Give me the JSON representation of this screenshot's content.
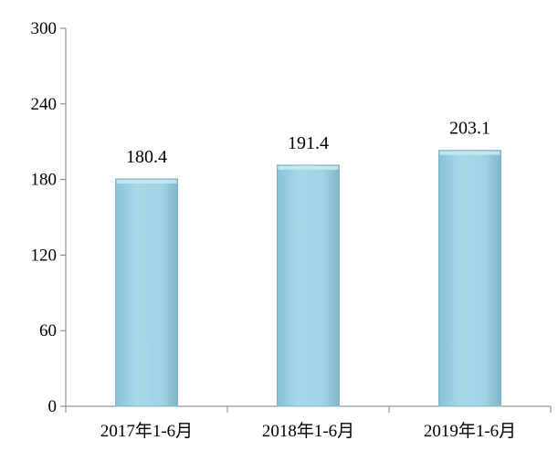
{
  "chart_data": {
    "type": "bar",
    "categories": [
      "2017年1-6月",
      "2018年1-6月",
      "2019年1-6月"
    ],
    "values": [
      180.4,
      191.4,
      203.1
    ],
    "value_labels": [
      "180.4",
      "191.4",
      "203.1"
    ],
    "yticks": [
      0,
      60,
      120,
      180,
      240,
      300
    ],
    "ytick_labels": [
      "0",
      "60",
      "120",
      "180",
      "240",
      "300"
    ],
    "ylim": [
      0,
      300
    ],
    "grid": false,
    "legend": "none",
    "colors": {
      "bar_fill": "#9dd0e0",
      "bar_edge": "#7fb4c6",
      "bar_shade": "#86bccd",
      "axis": "#7f7f7f"
    }
  }
}
